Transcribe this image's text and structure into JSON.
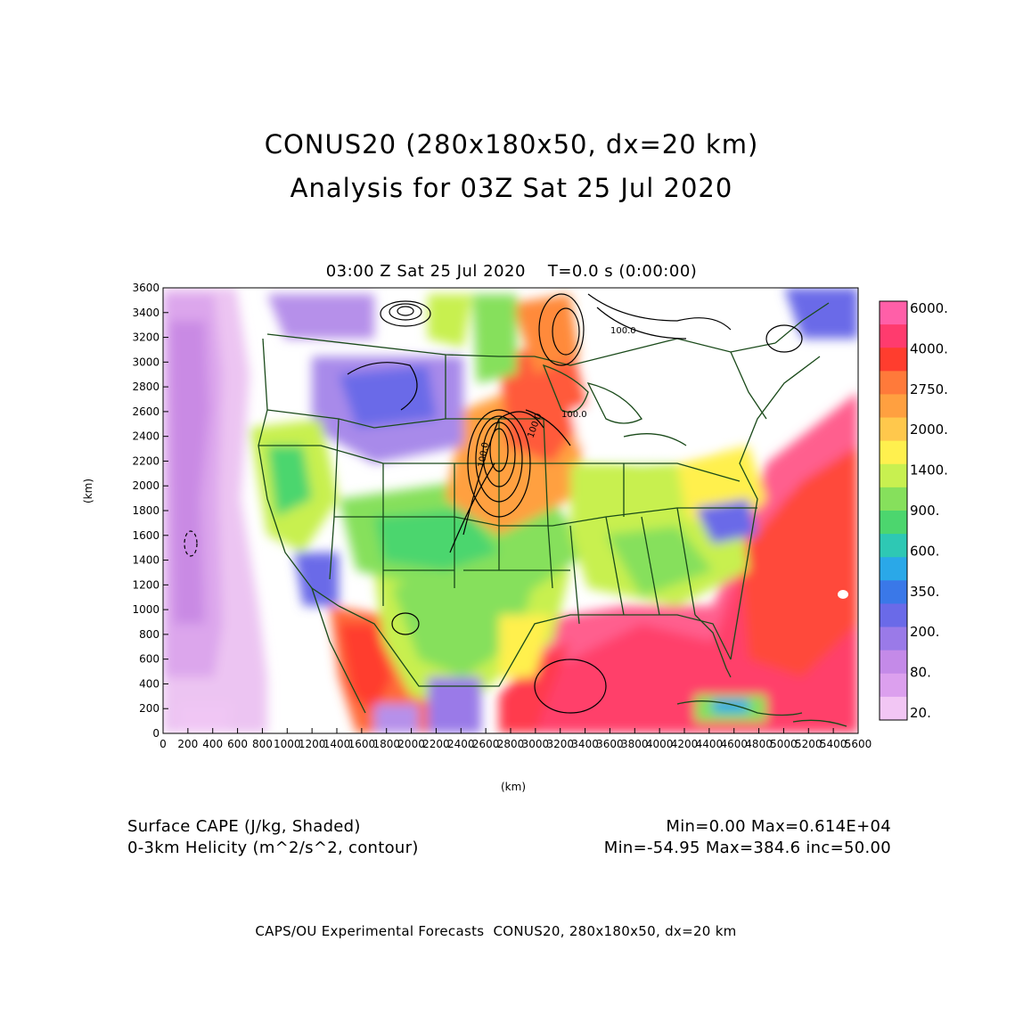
{
  "title": {
    "line1": "CONUS20 (280x180x50, dx=20 km)",
    "line2": "Analysis for 03Z Sat 25 Jul 2020"
  },
  "plot_header": "03:00 Z Sat 25 Jul 2020    T=0.0 s (0:00:00)",
  "axes": {
    "y_label": "(km)",
    "x_label": "(km)",
    "y_ticks": [
      "3600",
      "3400",
      "3200",
      "3000",
      "2800",
      "2600",
      "2400",
      "2200",
      "2000",
      "1800",
      "1600",
      "1400",
      "1200",
      "1000",
      "800",
      "600",
      "400",
      "200",
      "0"
    ],
    "x_ticks": [
      "0",
      "200",
      "400",
      "600",
      "800",
      "1000",
      "1200",
      "1400",
      "1600",
      "1800",
      "2000",
      "2200",
      "2400",
      "2600",
      "2800",
      "3000",
      "3200",
      "3400",
      "3600",
      "3800",
      "4000",
      "4200",
      "4400",
      "4600",
      "4800",
      "5000",
      "5200",
      "5400",
      "5600"
    ]
  },
  "colorbar": {
    "labels": [
      "6000.",
      "4000.",
      "2750.",
      "2000.",
      "1400.",
      "900.",
      "600.",
      "350.",
      "200.",
      "80.",
      "20."
    ],
    "colors": [
      "#ff5fa8",
      "#ff3b6e",
      "#ff3d2e",
      "#ff7a3a",
      "#ffa040",
      "#ffc84c",
      "#fff04e",
      "#c8f050",
      "#86e05c",
      "#4cd66e",
      "#2ec8b4",
      "#2aa8e8",
      "#3a78e8",
      "#6a6ae8",
      "#9a7ae8",
      "#c48ae8",
      "#dca0ee",
      "#f2c6f4"
    ]
  },
  "contour_labels": [
    "100.0",
    "100.0",
    "100.0",
    "100.0"
  ],
  "legend": {
    "field1": "Surface CAPE (J/kg, Shaded)",
    "field1_stats": "Min=0.00 Max=0.614E+04",
    "field2": "0-3km Helicity (m^2/s^2, contour)",
    "field2_stats": "Min=-54.95 Max=384.6 inc=50.00"
  },
  "footer": "CAPS/OU Experimental Forecasts  CONUS20, 280x180x50, dx=20 km"
}
